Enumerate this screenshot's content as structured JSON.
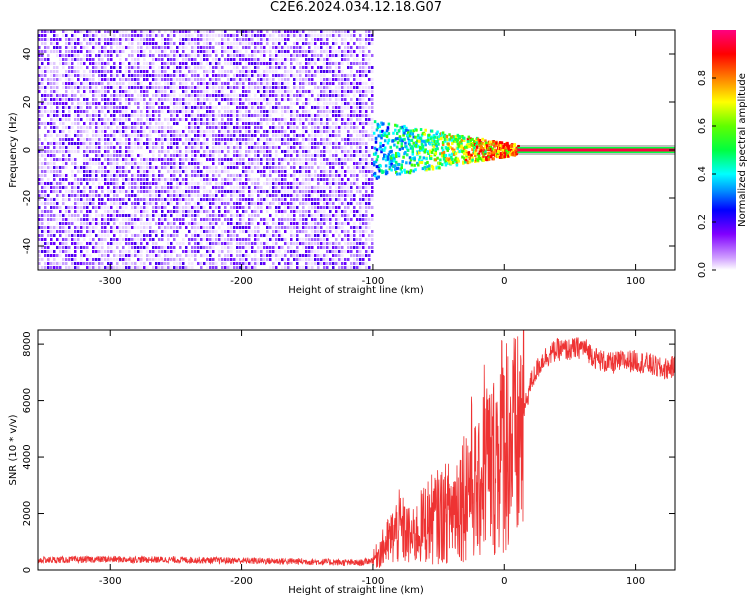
{
  "title": "C2E6.2024.034.12.18.G07",
  "chart_data": [
    {
      "type": "heatmap",
      "xlabel": "Height of straight line (km)",
      "ylabel": "Frequency (Hz)",
      "xlim": [
        -355,
        130
      ],
      "ylim": [
        -50,
        50
      ],
      "xticks": [
        -300,
        -200,
        -100,
        0,
        100
      ],
      "yticks": [
        -40,
        -20,
        0,
        20,
        40
      ],
      "colorbar": {
        "label": "Normalized spectral amplitude",
        "ticks": [
          0.0,
          0.2,
          0.4,
          0.6,
          0.8
        ],
        "range": [
          0,
          1
        ],
        "colormap": [
          "#ffffff",
          "#c080ff",
          "#7a00ff",
          "#0000ff",
          "#00a0ff",
          "#00ffff",
          "#00ff00",
          "#80ff00",
          "#ffff00",
          "#ff8000",
          "#ff0000",
          "#ff0080"
        ]
      },
      "features": {
        "noise_region_x": [
          -355,
          -100
        ],
        "signal_start_x": -100,
        "tone_frequency_hz": 0,
        "tone_from_x": 10
      }
    },
    {
      "type": "line",
      "xlabel": "Height of straight line (km)",
      "ylabel": "SNR (10 * v/v)",
      "xlim": [
        -355,
        130
      ],
      "ylim": [
        0,
        8500
      ],
      "xticks": [
        -300,
        -200,
        -100,
        0,
        100
      ],
      "yticks": [
        0,
        2000,
        4000,
        6000,
        8000
      ],
      "line_color": "#ee3333",
      "series": [
        {
          "x": [
            -355,
            -300,
            -250,
            -200,
            -150,
            -110,
            -100,
            -90,
            -80,
            -70,
            -60,
            -50,
            -40,
            -30,
            -25,
            -20,
            -15,
            -10,
            -5,
            0,
            5,
            10,
            15,
            20,
            25,
            30,
            40,
            50,
            60,
            70,
            80,
            90,
            100,
            110,
            120,
            130
          ],
          "y": [
            350,
            380,
            360,
            330,
            300,
            250,
            350,
            900,
            1500,
            1100,
            1700,
            1900,
            2100,
            2800,
            3300,
            2500,
            4200,
            3500,
            4200,
            4800,
            4500,
            4400,
            5600,
            6600,
            7100,
            7500,
            7800,
            7800,
            7900,
            7500,
            7300,
            7400,
            7400,
            7300,
            7100,
            7200
          ]
        }
      ]
    }
  ]
}
